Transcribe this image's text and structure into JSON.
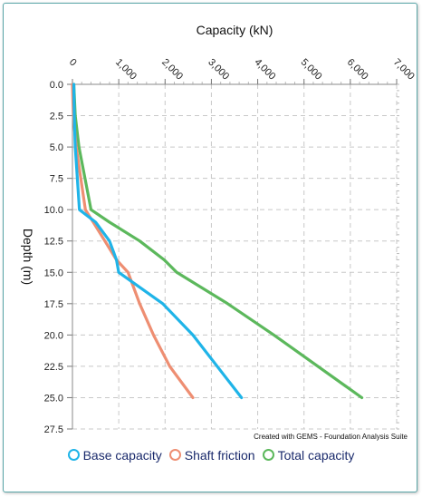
{
  "chart_data": {
    "type": "line",
    "title": "",
    "xlabel": "Capacity  (kN)",
    "ylabel": "Depth  (m)",
    "xlim": [
      0,
      7000
    ],
    "ylim": [
      0,
      27.5
    ],
    "x_axis_position": "top",
    "y_axis_inverted": true,
    "x_ticks": [
      "0",
      "1,000",
      "2,000",
      "3,000",
      "4,000",
      "5,000",
      "6,000",
      "7,000"
    ],
    "y_ticks": [
      "0.0",
      "2.5",
      "5.0",
      "7.5",
      "10.0",
      "12.5",
      "15.0",
      "17.5",
      "20.0",
      "22.5",
      "25.0",
      "27.5"
    ],
    "grid": true,
    "legend_position": "bottom",
    "credit": "Created with GEMS - Foundation Analysis Suite",
    "series": [
      {
        "name": "Base capacity",
        "color": "#1fb4e8",
        "depth": [
          0,
          2.5,
          5,
          10,
          11,
          12.5,
          14,
          15,
          17.5,
          20,
          25
        ],
        "capacity": [
          30,
          40,
          60,
          150,
          500,
          800,
          950,
          1000,
          1950,
          2600,
          3650
        ]
      },
      {
        "name": "Shaft friction",
        "color": "#ee8e72",
        "depth": [
          0,
          2.5,
          5,
          10,
          11,
          12.5,
          14,
          15,
          17.5,
          20,
          22.5,
          25
        ],
        "capacity": [
          0,
          20,
          80,
          280,
          450,
          700,
          950,
          1200,
          1450,
          1750,
          2100,
          2600
        ]
      },
      {
        "name": "Total capacity",
        "color": "#5cb85c",
        "depth": [
          0,
          2.5,
          5,
          10,
          11,
          12.5,
          14,
          15,
          17.5,
          20,
          25
        ],
        "capacity": [
          30,
          60,
          140,
          400,
          800,
          1450,
          1980,
          2250,
          3350,
          4350,
          6250
        ]
      }
    ]
  }
}
